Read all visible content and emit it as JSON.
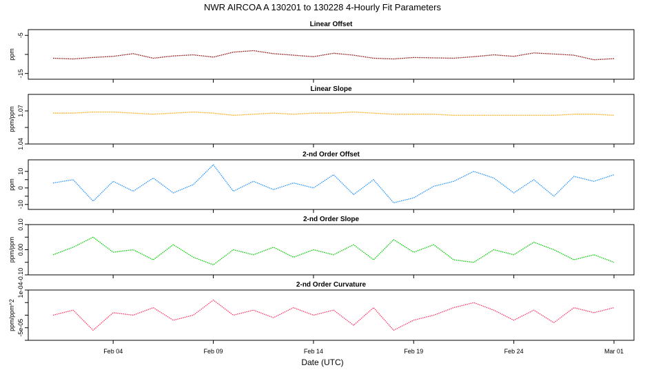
{
  "title": "NWR   AIRCOA A   130201 to 130228   4-Hourly Fit Parameters",
  "xlabel": "Date (UTC)",
  "x_ticks": [
    "Feb 04",
    "Feb 09",
    "Feb 14",
    "Feb 19",
    "Feb 24",
    "Mar 01"
  ],
  "chart_data": [
    {
      "type": "line",
      "title": "Linear Offset",
      "ylabel": "ppm",
      "color": "#8b0000",
      "ylim": [
        -16.5,
        -3.5
      ],
      "yticks": [
        -15,
        -10,
        -5
      ],
      "ytick_labels": [
        "-15",
        "",
        "-5"
      ],
      "x": [
        "2013-02-01",
        "2013-02-02",
        "2013-02-03",
        "2013-02-04",
        "2013-02-05",
        "2013-02-06",
        "2013-02-07",
        "2013-02-08",
        "2013-02-09",
        "2013-02-10",
        "2013-02-11",
        "2013-02-12",
        "2013-02-13",
        "2013-02-14",
        "2013-02-15",
        "2013-02-16",
        "2013-02-17",
        "2013-02-18",
        "2013-02-19",
        "2013-02-20",
        "2013-02-21",
        "2013-02-22",
        "2013-02-23",
        "2013-02-24",
        "2013-02-25",
        "2013-02-26",
        "2013-02-27",
        "2013-02-28",
        "2013-03-01"
      ],
      "values": [
        -11.0,
        -11.2,
        -10.8,
        -10.5,
        -9.8,
        -11.0,
        -10.4,
        -10.1,
        -10.7,
        -9.4,
        -9.0,
        -9.8,
        -10.2,
        -10.6,
        -9.7,
        -10.2,
        -11.0,
        -11.2,
        -10.8,
        -10.9,
        -11.0,
        -10.6,
        -10.1,
        -10.5,
        -9.6,
        -9.9,
        -10.2,
        -11.4,
        -11.1
      ]
    },
    {
      "type": "line",
      "title": "Linear Slope",
      "ylabel": "ppm/ppm",
      "color": "#ffa500",
      "ylim": [
        1.04,
        1.085
      ],
      "yticks": [
        1.04,
        1.055,
        1.07
      ],
      "ytick_labels": [
        "1.04",
        "",
        "1.07"
      ],
      "x": [
        "2013-02-01",
        "2013-02-02",
        "2013-02-03",
        "2013-02-04",
        "2013-02-05",
        "2013-02-06",
        "2013-02-07",
        "2013-02-08",
        "2013-02-09",
        "2013-02-10",
        "2013-02-11",
        "2013-02-12",
        "2013-02-13",
        "2013-02-14",
        "2013-02-15",
        "2013-02-16",
        "2013-02-17",
        "2013-02-18",
        "2013-02-19",
        "2013-02-20",
        "2013-02-21",
        "2013-02-22",
        "2013-02-23",
        "2013-02-24",
        "2013-02-25",
        "2013-02-26",
        "2013-02-27",
        "2013-02-28",
        "2013-03-01"
      ],
      "values": [
        1.068,
        1.068,
        1.069,
        1.069,
        1.068,
        1.067,
        1.068,
        1.069,
        1.068,
        1.066,
        1.067,
        1.068,
        1.067,
        1.068,
        1.068,
        1.069,
        1.068,
        1.067,
        1.067,
        1.067,
        1.066,
        1.066,
        1.066,
        1.066,
        1.066,
        1.066,
        1.067,
        1.067,
        1.066
      ]
    },
    {
      "type": "line",
      "title": "2-nd Order Offset",
      "ylabel": "ppm",
      "color": "#1e90ff",
      "ylim": [
        -13,
        17
      ],
      "yticks": [
        -10,
        -5,
        0,
        5,
        10
      ],
      "ytick_labels": [
        "-10",
        "",
        "0",
        "",
        "10"
      ],
      "x": [
        "2013-02-01",
        "2013-02-02",
        "2013-02-03",
        "2013-02-04",
        "2013-02-05",
        "2013-02-06",
        "2013-02-07",
        "2013-02-08",
        "2013-02-09",
        "2013-02-10",
        "2013-02-11",
        "2013-02-12",
        "2013-02-13",
        "2013-02-14",
        "2013-02-15",
        "2013-02-16",
        "2013-02-17",
        "2013-02-18",
        "2013-02-19",
        "2013-02-20",
        "2013-02-21",
        "2013-02-22",
        "2013-02-23",
        "2013-02-24",
        "2013-02-25",
        "2013-02-26",
        "2013-02-27",
        "2013-02-28",
        "2013-03-01"
      ],
      "values": [
        3,
        5,
        -8,
        4,
        -2,
        6,
        -3,
        2,
        14,
        -2,
        4,
        -1,
        3,
        0,
        8,
        -4,
        5,
        -9,
        -6,
        1,
        4,
        10,
        6,
        -3,
        5,
        -5,
        7,
        4,
        8
      ]
    },
    {
      "type": "line",
      "title": "2-nd Order Slope",
      "ylabel": "ppm/ppm",
      "color": "#00cc00",
      "ylim": [
        -0.1,
        0.1
      ],
      "yticks": [
        -0.1,
        -0.05,
        0,
        0.05,
        0.1
      ],
      "ytick_labels": [
        "-0.10",
        "",
        "0.00",
        "",
        "0.10"
      ],
      "x": [
        "2013-02-01",
        "2013-02-02",
        "2013-02-03",
        "2013-02-04",
        "2013-02-05",
        "2013-02-06",
        "2013-02-07",
        "2013-02-08",
        "2013-02-09",
        "2013-02-10",
        "2013-02-11",
        "2013-02-12",
        "2013-02-13",
        "2013-02-14",
        "2013-02-15",
        "2013-02-16",
        "2013-02-17",
        "2013-02-18",
        "2013-02-19",
        "2013-02-20",
        "2013-02-21",
        "2013-02-22",
        "2013-02-23",
        "2013-02-24",
        "2013-02-25",
        "2013-02-26",
        "2013-02-27",
        "2013-02-28",
        "2013-03-01"
      ],
      "values": [
        -0.02,
        0.01,
        0.05,
        -0.01,
        0.0,
        -0.04,
        0.02,
        -0.03,
        -0.06,
        0.0,
        -0.02,
        0.01,
        -0.03,
        0.0,
        -0.02,
        0.02,
        -0.04,
        0.04,
        -0.01,
        0.02,
        -0.04,
        -0.05,
        0.0,
        -0.02,
        0.03,
        0.0,
        -0.04,
        -0.02,
        -0.05
      ]
    },
    {
      "type": "line",
      "title": "2-nd Order Curvature",
      "ylabel": "ppm/ppm^2",
      "color": "#ff3060",
      "ylim": [
        -0.0001,
        0.0001
      ],
      "yticks": [
        -0.0001,
        -5e-05,
        0,
        5e-05,
        0.0001
      ],
      "ytick_labels": [
        "",
        "-5e-05",
        "",
        "",
        "1e-04"
      ],
      "x": [
        "2013-02-01",
        "2013-02-02",
        "2013-02-03",
        "2013-02-04",
        "2013-02-05",
        "2013-02-06",
        "2013-02-07",
        "2013-02-08",
        "2013-02-09",
        "2013-02-10",
        "2013-02-11",
        "2013-02-12",
        "2013-02-13",
        "2013-02-14",
        "2013-02-15",
        "2013-02-16",
        "2013-02-17",
        "2013-02-18",
        "2013-02-19",
        "2013-02-20",
        "2013-02-21",
        "2013-02-22",
        "2013-02-23",
        "2013-02-24",
        "2013-02-25",
        "2013-02-26",
        "2013-02-27",
        "2013-02-28",
        "2013-03-01"
      ],
      "values": [
        0.0,
        2e-05,
        -6e-05,
        1e-05,
        0.0,
        3e-05,
        -2e-05,
        0.0,
        6e-05,
        0.0,
        2e-05,
        -1e-05,
        3e-05,
        0.0,
        2e-05,
        -4e-05,
        3e-05,
        -6e-05,
        -2e-05,
        0.0,
        3e-05,
        5e-05,
        2e-05,
        -2e-05,
        2e-05,
        -3e-05,
        3e-05,
        1e-05,
        3e-05
      ]
    }
  ]
}
